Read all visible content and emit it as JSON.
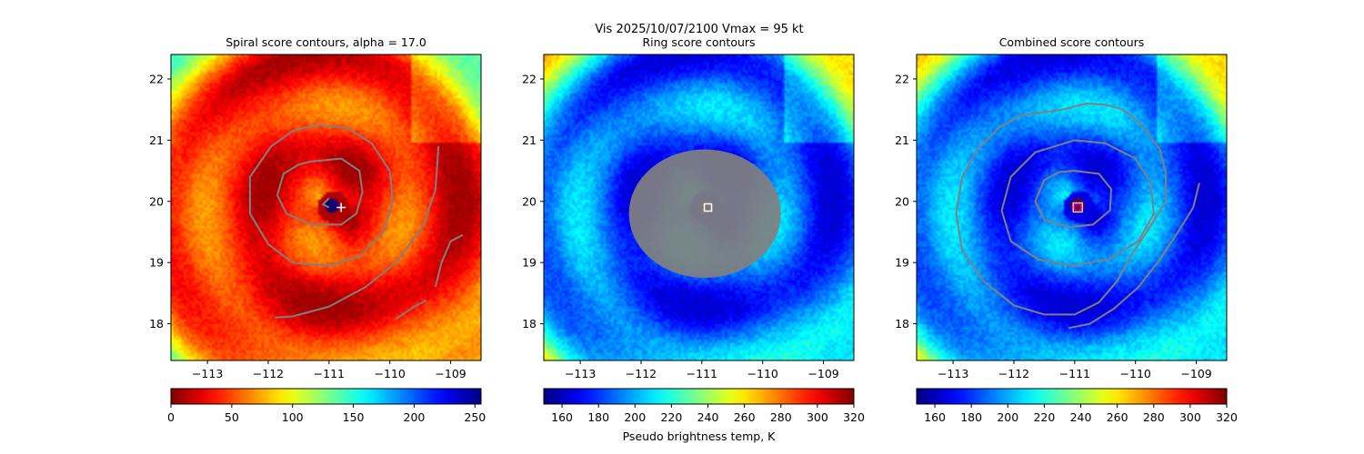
{
  "suptitle": {
    "line1": "Vis  2025/10/07/2100    Vmax = 95 kt"
  },
  "colors": {
    "contour": "#808080",
    "marker_spiral": "#ffffff",
    "marker_ring": "#ffffff",
    "marker_combined_outer": "#ffffff",
    "marker_combined_inner": "#cc00cc"
  },
  "chart_data": [
    {
      "type": "heatmap",
      "title": "Spiral score contours, alpha = 17.0",
      "colormap": "jet",
      "colormap_reversed": false,
      "xlim": [
        -113.6,
        -108.5
      ],
      "ylim": [
        17.4,
        22.4
      ],
      "xticks": [
        -113,
        -112,
        -111,
        -110,
        -109
      ],
      "xtick_labels": [
        "−113",
        "−112",
        "−111",
        "−110",
        "−109"
      ],
      "yticks": [
        18,
        19,
        20,
        21,
        22
      ],
      "ytick_labels": [
        "18",
        "19",
        "20",
        "21",
        "22"
      ],
      "center": {
        "lon": -110.95,
        "lat": 19.93
      },
      "eye_radius_deg": 0.12,
      "marker": {
        "shape": "plus",
        "lon": -110.8,
        "lat": 19.9
      },
      "contours": [
        [
          [
            -111.0,
            19.9
          ],
          [
            -111.1,
            19.95
          ],
          [
            -111.0,
            20.05
          ]
        ],
        [
          [
            -111.3,
            20.65
          ],
          [
            -110.8,
            20.7
          ],
          [
            -110.5,
            20.5
          ],
          [
            -110.45,
            20.15
          ],
          [
            -110.55,
            19.8
          ],
          [
            -110.8,
            19.62
          ],
          [
            -111.3,
            19.62
          ],
          [
            -111.7,
            19.8
          ],
          [
            -111.85,
            20.1
          ],
          [
            -111.75,
            20.45
          ],
          [
            -111.5,
            20.6
          ],
          [
            -111.3,
            20.65
          ]
        ],
        [
          [
            -111.2,
            21.25
          ],
          [
            -110.7,
            21.2
          ],
          [
            -110.3,
            20.95
          ],
          [
            -110.0,
            20.5
          ],
          [
            -109.95,
            20.0
          ],
          [
            -110.1,
            19.5
          ],
          [
            -110.5,
            19.1
          ],
          [
            -111.0,
            18.95
          ],
          [
            -111.6,
            19.0
          ],
          [
            -112.0,
            19.3
          ],
          [
            -112.3,
            19.8
          ],
          [
            -112.3,
            20.4
          ],
          [
            -111.95,
            20.9
          ],
          [
            -111.6,
            21.15
          ],
          [
            -111.2,
            21.25
          ]
        ],
        [
          [
            -109.2,
            20.9
          ],
          [
            -109.25,
            20.2
          ],
          [
            -109.45,
            19.6
          ],
          [
            -109.9,
            19.0
          ],
          [
            -110.4,
            18.6
          ],
          [
            -111.0,
            18.28
          ],
          [
            -111.6,
            18.12
          ],
          [
            -111.9,
            18.1
          ]
        ],
        [
          [
            -109.9,
            18.08
          ],
          [
            -109.6,
            18.28
          ],
          [
            -109.4,
            18.38
          ]
        ],
        [
          [
            -108.8,
            19.45
          ],
          [
            -109.0,
            19.35
          ],
          [
            -109.15,
            19.0
          ],
          [
            -109.25,
            18.6
          ]
        ]
      ]
    },
    {
      "type": "heatmap",
      "title": "Ring score contours",
      "colormap": "jet",
      "colormap_reversed": true,
      "xlim": [
        -113.6,
        -108.5
      ],
      "ylim": [
        17.4,
        22.4
      ],
      "xticks": [
        -113,
        -112,
        -111,
        -110,
        -109
      ],
      "xtick_labels": [
        "−113",
        "−112",
        "−111",
        "−110",
        "−109"
      ],
      "yticks": [
        18,
        19,
        20,
        21,
        22
      ],
      "ytick_labels": [
        "18",
        "19",
        "20",
        "21",
        "22"
      ],
      "center": {
        "lon": -110.95,
        "lat": 19.93
      },
      "eye_radius_deg": 0.12,
      "marker": {
        "shape": "square",
        "lon": -110.9,
        "lat": 19.9
      },
      "fill_region": {
        "lon": -110.95,
        "lat": 19.8,
        "rx_deg": 1.25,
        "ry_deg": 1.05
      },
      "contours": []
    },
    {
      "type": "heatmap",
      "title": "Combined score contours",
      "colormap": "jet",
      "colormap_reversed": true,
      "xlim": [
        -113.6,
        -108.5
      ],
      "ylim": [
        17.4,
        22.4
      ],
      "xticks": [
        -113,
        -112,
        -111,
        -110,
        -109
      ],
      "xtick_labels": [
        "−113",
        "−112",
        "−111",
        "−110",
        "−109"
      ],
      "yticks": [
        18,
        19,
        20,
        21,
        22
      ],
      "ytick_labels": [
        "18",
        "19",
        "20",
        "21",
        "22"
      ],
      "center": {
        "lon": -110.95,
        "lat": 19.93
      },
      "eye_radius_deg": 0.12,
      "marker": {
        "shape": "circle-square",
        "lon": -110.95,
        "lat": 19.9
      },
      "contours": [
        [
          [
            -111.0,
            20.5
          ],
          [
            -110.6,
            20.45
          ],
          [
            -110.4,
            20.2
          ],
          [
            -110.42,
            19.85
          ],
          [
            -110.7,
            19.62
          ],
          [
            -111.1,
            19.58
          ],
          [
            -111.5,
            19.7
          ],
          [
            -111.65,
            20.0
          ],
          [
            -111.5,
            20.35
          ],
          [
            -111.25,
            20.48
          ],
          [
            -111.0,
            20.5
          ]
        ],
        [
          [
            -111.0,
            21.0
          ],
          [
            -110.5,
            20.95
          ],
          [
            -110.0,
            20.7
          ],
          [
            -109.75,
            20.3
          ],
          [
            -109.7,
            19.8
          ],
          [
            -109.95,
            19.35
          ],
          [
            -110.45,
            19.05
          ],
          [
            -111.05,
            18.95
          ],
          [
            -111.6,
            19.05
          ],
          [
            -112.05,
            19.35
          ],
          [
            -112.2,
            19.85
          ],
          [
            -112.05,
            20.4
          ],
          [
            -111.65,
            20.8
          ],
          [
            -111.0,
            21.0
          ]
        ],
        [
          [
            -111.9,
            21.4
          ],
          [
            -111.2,
            21.5
          ],
          [
            -110.8,
            21.6
          ],
          [
            -110.5,
            21.58
          ],
          [
            -110.2,
            21.5
          ],
          [
            -109.9,
            21.25
          ],
          [
            -109.6,
            20.85
          ],
          [
            -109.5,
            20.45
          ],
          [
            -109.5,
            20.0
          ],
          [
            -109.75,
            19.6
          ],
          [
            -110.05,
            19.15
          ],
          [
            -110.3,
            18.7
          ],
          [
            -110.6,
            18.35
          ],
          [
            -111.0,
            18.15
          ],
          [
            -111.5,
            18.15
          ],
          [
            -112.0,
            18.3
          ],
          [
            -112.5,
            18.7
          ],
          [
            -112.85,
            19.2
          ],
          [
            -112.95,
            19.8
          ],
          [
            -112.85,
            20.4
          ],
          [
            -112.6,
            20.85
          ],
          [
            -112.25,
            21.2
          ],
          [
            -111.9,
            21.4
          ]
        ],
        [
          [
            -108.95,
            20.3
          ],
          [
            -109.05,
            19.9
          ],
          [
            -109.3,
            19.5
          ],
          [
            -109.6,
            19.05
          ],
          [
            -109.95,
            18.6
          ],
          [
            -110.35,
            18.25
          ],
          [
            -110.75,
            18.0
          ],
          [
            -111.1,
            17.93
          ]
        ]
      ]
    }
  ],
  "colorbars": [
    {
      "cmap": "jet",
      "reversed": true,
      "vmin": 0,
      "vmax": 255,
      "ticks": [
        "0",
        "50",
        "100",
        "150",
        "200",
        "250"
      ],
      "tick_values": [
        0,
        50,
        100,
        150,
        200,
        250
      ],
      "label": ""
    },
    {
      "cmap": "jet",
      "reversed": false,
      "vmin": 150,
      "vmax": 320,
      "ticks": [
        "160",
        "180",
        "200",
        "220",
        "240",
        "260",
        "280",
        "300",
        "320"
      ],
      "tick_values": [
        160,
        180,
        200,
        220,
        240,
        260,
        280,
        300,
        320
      ],
      "label": "Pseudo brightness temp, K"
    },
    {
      "cmap": "jet",
      "reversed": false,
      "vmin": 150,
      "vmax": 320,
      "ticks": [
        "160",
        "180",
        "200",
        "220",
        "240",
        "260",
        "280",
        "300",
        "320"
      ],
      "tick_values": [
        160,
        180,
        200,
        220,
        240,
        260,
        280,
        300,
        320
      ],
      "label": ""
    }
  ]
}
